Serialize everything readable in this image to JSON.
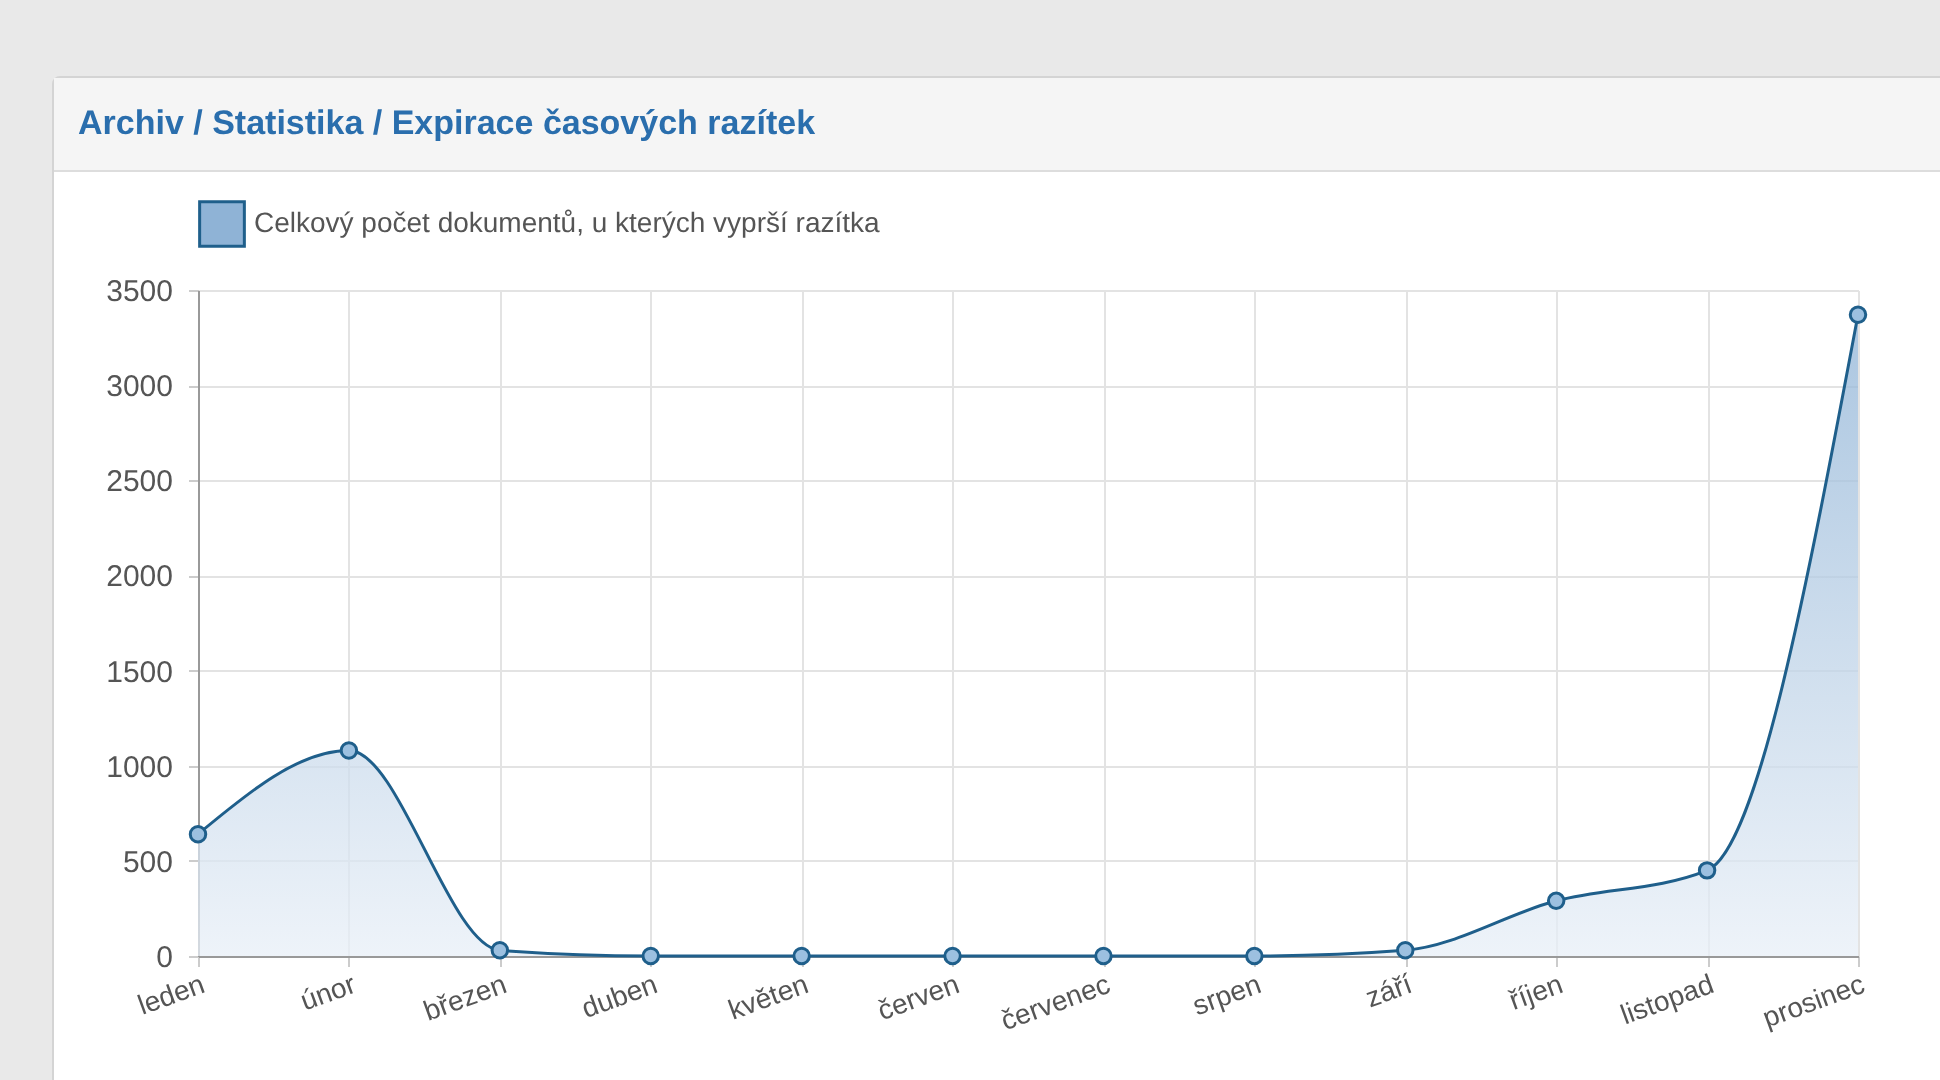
{
  "chart_data": {
    "type": "area",
    "title": "Archiv / Statistika / Expirace časových razítek",
    "categories": [
      "leden",
      "únor",
      "březen",
      "duben",
      "květen",
      "červen",
      "červenec",
      "srpen",
      "září",
      "říjen",
      "listopad",
      "prosinec"
    ],
    "series": [
      {
        "name": "Celkový počet dokumentů, u kterých vyprší razítka",
        "color": "#1f5f8b",
        "values": [
          640,
          1080,
          30,
          0,
          0,
          0,
          0,
          0,
          30,
          290,
          450,
          3370
        ]
      }
    ],
    "ylim": [
      0,
      3500
    ],
    "yticks": [
      0,
      500,
      1000,
      1500,
      2000,
      2500,
      3000,
      3500
    ],
    "grid": true,
    "legend": "top",
    "marker": "circle"
  }
}
